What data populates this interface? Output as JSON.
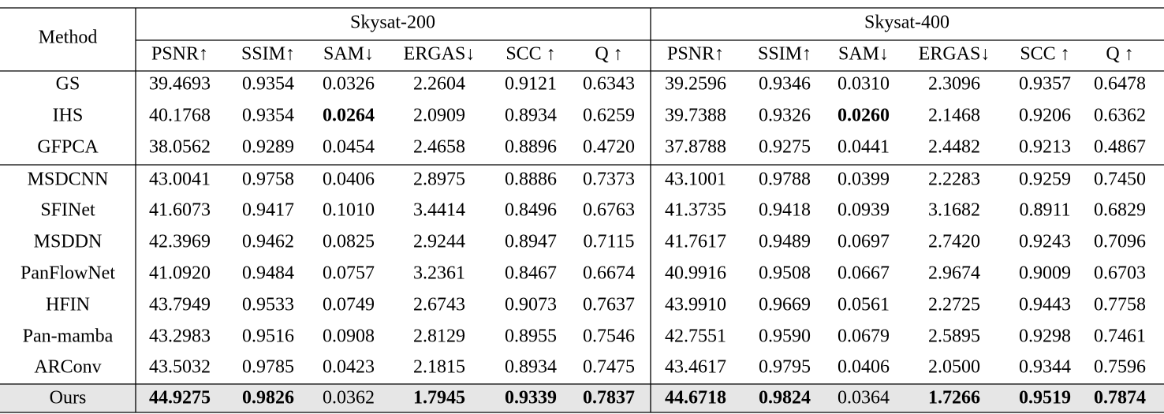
{
  "table": {
    "method_header": "Method",
    "groups": [
      "Skysat-200",
      "Skysat-400"
    ],
    "metrics": [
      "PSNR↑",
      "SSIM↑",
      "SAM↓",
      "ERGAS↓",
      "SCC ↑",
      "Q ↑",
      "PSNR↑",
      "SSIM↑",
      "SAM↓",
      "ERGAS↓",
      "SCC ↑",
      "Q ↑"
    ],
    "rows": [
      {
        "method": "GS",
        "values": [
          "39.4693",
          "0.9354",
          "0.0326",
          "2.2604",
          "0.9121",
          "0.6343",
          "39.2596",
          "0.9346",
          "0.0310",
          "2.3096",
          "0.9357",
          "0.6478"
        ],
        "bold": []
      },
      {
        "method": "IHS",
        "values": [
          "40.1768",
          "0.9354",
          "0.0264",
          "2.0909",
          "0.8934",
          "0.6259",
          "39.7388",
          "0.9326",
          "0.0260",
          "2.1468",
          "0.9206",
          "0.6362"
        ],
        "bold": [
          2,
          8
        ]
      },
      {
        "method": "GFPCA",
        "values": [
          "38.0562",
          "0.9289",
          "0.0454",
          "2.4658",
          "0.8896",
          "0.4720",
          "37.8788",
          "0.9275",
          "0.0441",
          "2.4482",
          "0.9213",
          "0.4867"
        ],
        "bold": []
      },
      {
        "method": "MSDCNN",
        "values": [
          "43.0041",
          "0.9758",
          "0.0406",
          "2.8975",
          "0.8886",
          "0.7373",
          "43.1001",
          "0.9788",
          "0.0399",
          "2.2283",
          "0.9259",
          "0.7450"
        ],
        "bold": []
      },
      {
        "method": "SFINet",
        "values": [
          "41.6073",
          "0.9417",
          "0.1010",
          "3.4414",
          "0.8496",
          "0.6763",
          "41.3735",
          "0.9418",
          "0.0939",
          "3.1682",
          "0.8911",
          "0.6829"
        ],
        "bold": []
      },
      {
        "method": "MSDDN",
        "values": [
          "42.3969",
          "0.9462",
          "0.0825",
          "2.9244",
          "0.8947",
          "0.7115",
          "41.7617",
          "0.9489",
          "0.0697",
          "2.7420",
          "0.9243",
          "0.7096"
        ],
        "bold": []
      },
      {
        "method": "PanFlowNet",
        "values": [
          "41.0920",
          "0.9484",
          "0.0757",
          "3.2361",
          "0.8467",
          "0.6674",
          "40.9916",
          "0.9508",
          "0.0667",
          "2.9674",
          "0.9009",
          "0.6703"
        ],
        "bold": []
      },
      {
        "method": "HFIN",
        "values": [
          "43.7949",
          "0.9533",
          "0.0749",
          "2.6743",
          "0.9073",
          "0.7637",
          "43.9910",
          "0.9669",
          "0.0561",
          "2.2725",
          "0.9443",
          "0.7758"
        ],
        "bold": []
      },
      {
        "method": "Pan-mamba",
        "values": [
          "43.2983",
          "0.9516",
          "0.0908",
          "2.8129",
          "0.8955",
          "0.7546",
          "42.7551",
          "0.9590",
          "0.0679",
          "2.5895",
          "0.9298",
          "0.7461"
        ],
        "bold": []
      },
      {
        "method": "ARConv",
        "values": [
          "43.5032",
          "0.9785",
          "0.0423",
          "2.1815",
          "0.8934",
          "0.7475",
          "43.4617",
          "0.9795",
          "0.0406",
          "2.0500",
          "0.9344",
          "0.7596"
        ],
        "bold": []
      },
      {
        "method": "Ours",
        "values": [
          "44.9275",
          "0.9826",
          "0.0362",
          "1.7945",
          "0.9339",
          "0.7837",
          "44.6718",
          "0.9824",
          "0.0364",
          "1.7266",
          "0.9519",
          "0.7874"
        ],
        "bold": [
          0,
          1,
          3,
          4,
          5,
          6,
          7,
          9,
          10,
          11
        ],
        "highlight": true
      }
    ]
  }
}
